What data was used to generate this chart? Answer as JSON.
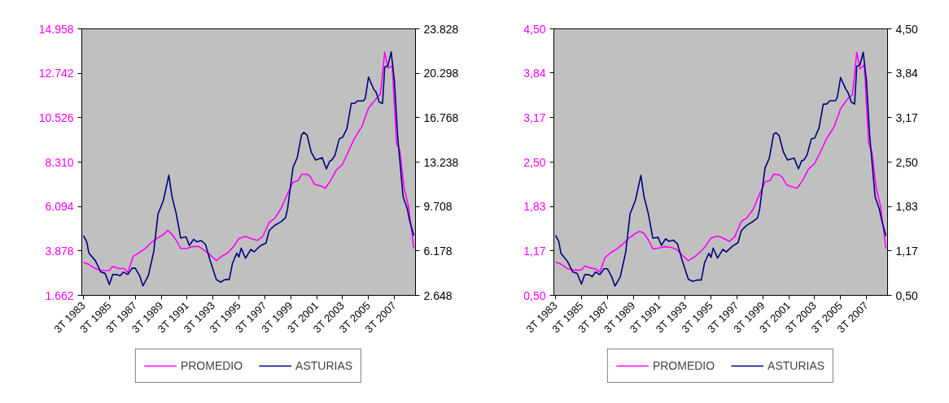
{
  "chart_data": [
    {
      "type": "line",
      "legend": "bottom",
      "grid": false,
      "marker": "none",
      "line_style": "solid",
      "xlim": [
        "1983-05-15",
        "2009-02-15"
      ],
      "xticks": [
        {
          "value": "1983-07",
          "label": "3T 1983"
        },
        {
          "value": "1985-07",
          "label": "3T 1985"
        },
        {
          "value": "1987-07",
          "label": "3T 1987"
        },
        {
          "value": "1989-07",
          "label": "3T 1989"
        },
        {
          "value": "1991-07",
          "label": "3T 1991"
        },
        {
          "value": "1993-07",
          "label": "3T 1993"
        },
        {
          "value": "1995-07",
          "label": "3T 1995"
        },
        {
          "value": "1997-07",
          "label": "3T 1997"
        },
        {
          "value": "1999-07",
          "label": "3T 1999"
        },
        {
          "value": "2001-07",
          "label": "3T 2001"
        },
        {
          "value": "2003-07",
          "label": "3T 2003"
        },
        {
          "value": "2005-07",
          "label": "3T 2005"
        },
        {
          "value": "2007-07",
          "label": "3T 2007"
        }
      ],
      "ylim": [
        1662,
        14958
      ],
      "yticks": [
        {
          "value": 1662,
          "label": "1.662"
        },
        {
          "value": 3878,
          "label": "3.878"
        },
        {
          "value": 6094,
          "label": "6.094"
        },
        {
          "value": 8310,
          "label": "8.310"
        },
        {
          "value": 10526,
          "label": "10.526"
        },
        {
          "value": 12742,
          "label": "12.742"
        },
        {
          "value": 14958,
          "label": "14.958"
        }
      ],
      "y2lim": [
        2648,
        23828
      ],
      "y2ticks": [
        {
          "value": 2648,
          "label": "2.648"
        },
        {
          "value": 6178,
          "label": "6.178"
        },
        {
          "value": 9708,
          "label": "9.708"
        },
        {
          "value": 13238,
          "label": "13.238"
        },
        {
          "value": 16768,
          "label": "16.768"
        },
        {
          "value": 20298,
          "label": "20.298"
        },
        {
          "value": 23828,
          "label": "23.828"
        }
      ],
      "series": [
        {
          "name": "PROMEDIO",
          "color": "#ff00ff",
          "x": [
            "1983-07",
            "1983-12",
            "1984-06",
            "1984-11",
            "1985-07",
            "1985-10",
            "1986-04",
            "1986-09",
            "1986-12",
            "1987-05",
            "1987-11",
            "1988-04",
            "1988-10",
            "1989-03",
            "1989-09",
            "1990-01",
            "1990-05",
            "1990-09",
            "1991-01",
            "1991-07",
            "1991-12",
            "1992-06",
            "1992-11",
            "1993-04",
            "1993-10",
            "1994-03",
            "1994-09",
            "1995-02",
            "1995-07",
            "1996-01",
            "1996-06",
            "1996-12",
            "1997-05",
            "1997-11",
            "1998-04",
            "1998-10",
            "1999-03",
            "1999-09",
            "2000-02",
            "2000-05",
            "2000-10",
            "2001-01",
            "2001-05",
            "2001-12",
            "2002-03",
            "2002-08",
            "2003-01",
            "2003-07",
            "2003-12",
            "2004-06",
            "2005-01",
            "2005-07",
            "2006-01",
            "2006-06",
            "2006-10",
            "2007-01",
            "2007-05",
            "2007-09",
            "2007-12",
            "2008-04",
            "2008-08",
            "2009-01"
          ],
          "values": [
            3300,
            3200,
            3000,
            2900,
            2900,
            3100,
            3000,
            3000,
            2800,
            3600,
            3800,
            4000,
            4300,
            4500,
            4700,
            4900,
            4700,
            4400,
            4000,
            4000,
            4100,
            4100,
            3900,
            3700,
            3400,
            3600,
            3800,
            4100,
            4500,
            4600,
            4500,
            4400,
            4600,
            5300,
            5500,
            6000,
            6600,
            7300,
            7400,
            7700,
            7700,
            7600,
            7200,
            7100,
            7000,
            7400,
            7900,
            8200,
            8800,
            9500,
            10100,
            11000,
            11400,
            11700,
            13800,
            13000,
            13100,
            9200,
            8900,
            7000,
            6100,
            4000
          ]
        },
        {
          "name": "ASTURIAS",
          "color": "#000080",
          "axis": "y2",
          "x": [
            "1983-07",
            "1983-10",
            "1983-12",
            "1984-06",
            "1984-11",
            "1985-03",
            "1985-07",
            "1985-10",
            "1986-02",
            "1986-05",
            "1986-08",
            "1986-12",
            "1987-04",
            "1987-07",
            "1987-11",
            "1988-02",
            "1988-07",
            "1988-12",
            "1989-04",
            "1989-09",
            "1990-02",
            "1990-05",
            "1990-09",
            "1991-01",
            "1991-06",
            "1991-09",
            "1992-01",
            "1992-04",
            "1992-08",
            "1992-12",
            "1993-04",
            "1993-10",
            "1994-02",
            "1994-06",
            "1994-10",
            "1995-01",
            "1995-05",
            "1995-07",
            "1995-09",
            "1996-01",
            "1996-06",
            "1996-09",
            "1997-03",
            "1997-08",
            "1997-11",
            "1998-04",
            "1998-10",
            "1999-02",
            "1999-04",
            "1999-09",
            "2000-01",
            "2000-05",
            "2000-07",
            "2000-10",
            "2001-02",
            "2001-06",
            "2001-12",
            "2002-04",
            "2002-07",
            "2002-09",
            "2002-12",
            "2003-04",
            "2003-07",
            "2003-11",
            "2004-03",
            "2004-06",
            "2004-09",
            "2005-02",
            "2005-04",
            "2005-07",
            "2005-12",
            "2006-02",
            "2006-05",
            "2006-08",
            "2006-10",
            "2007-01",
            "2007-04",
            "2007-07",
            "2007-10",
            "2008-03",
            "2008-07",
            "2008-09",
            "2009-01"
          ],
          "values": [
            7400,
            6900,
            6000,
            5400,
            4500,
            4400,
            3500,
            4300,
            4300,
            4200,
            4500,
            4300,
            4800,
            4800,
            4200,
            3400,
            4200,
            6100,
            9100,
            10200,
            12200,
            10500,
            9100,
            7200,
            7300,
            6600,
            7100,
            6900,
            7000,
            6700,
            5500,
            3900,
            3700,
            3900,
            3900,
            5200,
            6000,
            5700,
            6400,
            5600,
            6300,
            6100,
            6600,
            6800,
            7800,
            8200,
            8500,
            8800,
            9500,
            12800,
            13600,
            15400,
            15600,
            15400,
            14000,
            13400,
            13600,
            12700,
            13300,
            13400,
            13800,
            15100,
            15200,
            15900,
            17900,
            17900,
            18100,
            18100,
            18300,
            20000,
            19000,
            18800,
            18000,
            17900,
            20800,
            20900,
            22000,
            19700,
            15300,
            10500,
            9500,
            8600,
            7400
          ]
        }
      ]
    },
    {
      "type": "line",
      "legend": "bottom",
      "grid": false,
      "marker": "none",
      "line_style": "solid",
      "xlim": [
        "1983-05-15",
        "2009-02-15"
      ],
      "xticks": [
        {
          "value": "1983-07",
          "label": "3T 1983"
        },
        {
          "value": "1985-07",
          "label": "3T 1985"
        },
        {
          "value": "1987-07",
          "label": "3T 1987"
        },
        {
          "value": "1989-07",
          "label": "3T 1989"
        },
        {
          "value": "1991-07",
          "label": "3T 1991"
        },
        {
          "value": "1993-07",
          "label": "3T 1993"
        },
        {
          "value": "1995-07",
          "label": "3T 1995"
        },
        {
          "value": "1997-07",
          "label": "3T 1997"
        },
        {
          "value": "1999-07",
          "label": "3T 1999"
        },
        {
          "value": "2001-07",
          "label": "3T 2001"
        },
        {
          "value": "2003-07",
          "label": "3T 2003"
        },
        {
          "value": "2005-07",
          "label": "3T 2005"
        },
        {
          "value": "2007-07",
          "label": "3T 2007"
        }
      ],
      "ylim": [
        0.5,
        4.5
      ],
      "yticks": [
        {
          "value": 0.5,
          "label": "0,50"
        },
        {
          "value": 1.17,
          "label": "1,17"
        },
        {
          "value": 1.83,
          "label": "1,83"
        },
        {
          "value": 2.5,
          "label": "2,50"
        },
        {
          "value": 3.17,
          "label": "3,17"
        },
        {
          "value": 3.84,
          "label": "3,84"
        },
        {
          "value": 4.5,
          "label": "4,50"
        }
      ],
      "y2lim": [
        0.5,
        4.5
      ],
      "y2ticks": [
        {
          "value": 0.5,
          "label": "0,50"
        },
        {
          "value": 1.17,
          "label": "1,17"
        },
        {
          "value": 1.83,
          "label": "1,83"
        },
        {
          "value": 2.5,
          "label": "2,50"
        },
        {
          "value": 3.17,
          "label": "3,17"
        },
        {
          "value": 3.84,
          "label": "3,84"
        },
        {
          "value": 4.5,
          "label": "4,50"
        }
      ],
      "series": [
        {
          "name": "PROMEDIO",
          "color": "#ff00ff",
          "x": [
            "1983-07",
            "1983-12",
            "1984-06",
            "1984-11",
            "1985-07",
            "1985-10",
            "1986-04",
            "1986-09",
            "1986-12",
            "1987-05",
            "1987-11",
            "1988-04",
            "1988-10",
            "1989-03",
            "1989-09",
            "1990-01",
            "1990-05",
            "1990-09",
            "1991-01",
            "1991-07",
            "1991-12",
            "1992-06",
            "1992-11",
            "1993-04",
            "1993-10",
            "1994-03",
            "1994-09",
            "1995-02",
            "1995-07",
            "1996-01",
            "1996-06",
            "1996-12",
            "1997-05",
            "1997-11",
            "1998-04",
            "1998-10",
            "1999-03",
            "1999-09",
            "2000-02",
            "2000-05",
            "2000-10",
            "2001-01",
            "2001-05",
            "2001-12",
            "2002-03",
            "2002-08",
            "2003-01",
            "2003-07",
            "2003-12",
            "2004-06",
            "2005-01",
            "2005-07",
            "2006-01",
            "2006-06",
            "2006-10",
            "2007-01",
            "2007-05",
            "2007-09",
            "2007-12",
            "2008-04",
            "2008-08",
            "2009-01"
          ],
          "values": [
            1.0,
            0.97,
            0.9,
            0.88,
            0.88,
            0.94,
            0.91,
            0.89,
            0.85,
            1.07,
            1.15,
            1.2,
            1.28,
            1.36,
            1.43,
            1.46,
            1.43,
            1.33,
            1.2,
            1.21,
            1.23,
            1.22,
            1.19,
            1.11,
            1.02,
            1.07,
            1.15,
            1.24,
            1.36,
            1.39,
            1.36,
            1.31,
            1.38,
            1.61,
            1.66,
            1.79,
            1.98,
            2.2,
            2.23,
            2.32,
            2.31,
            2.27,
            2.16,
            2.12,
            2.11,
            2.23,
            2.39,
            2.48,
            2.64,
            2.85,
            3.03,
            3.3,
            3.44,
            3.51,
            4.15,
            3.9,
            3.96,
            2.78,
            2.66,
            2.11,
            1.84,
            1.2
          ]
        },
        {
          "name": "ASTURIAS",
          "color": "#000080",
          "axis": "y2",
          "x": [
            "1983-07",
            "1983-10",
            "1983-12",
            "1984-06",
            "1984-11",
            "1985-03",
            "1985-07",
            "1985-10",
            "1986-02",
            "1986-05",
            "1986-08",
            "1986-12",
            "1987-04",
            "1987-07",
            "1987-11",
            "1988-02",
            "1988-07",
            "1988-12",
            "1989-04",
            "1989-09",
            "1990-02",
            "1990-05",
            "1990-09",
            "1991-01",
            "1991-06",
            "1991-09",
            "1992-01",
            "1992-04",
            "1992-08",
            "1992-12",
            "1993-04",
            "1993-10",
            "1994-02",
            "1994-06",
            "1994-10",
            "1995-01",
            "1995-05",
            "1995-07",
            "1995-09",
            "1996-01",
            "1996-06",
            "1996-09",
            "1997-03",
            "1997-08",
            "1997-11",
            "1998-04",
            "1998-10",
            "1999-02",
            "1999-04",
            "1999-09",
            "2000-01",
            "2000-05",
            "2000-07",
            "2000-10",
            "2001-02",
            "2001-06",
            "2001-12",
            "2002-04",
            "2002-07",
            "2002-09",
            "2002-12",
            "2003-04",
            "2003-07",
            "2003-11",
            "2004-03",
            "2004-06",
            "2004-09",
            "2005-02",
            "2005-04",
            "2005-07",
            "2005-12",
            "2006-02",
            "2006-05",
            "2006-08",
            "2006-10",
            "2007-01",
            "2007-04",
            "2007-07",
            "2007-10",
            "2008-03",
            "2008-07",
            "2008-09",
            "2009-01"
          ],
          "values": [
            1.4,
            1.31,
            1.13,
            1.01,
            0.85,
            0.83,
            0.67,
            0.81,
            0.81,
            0.78,
            0.85,
            0.81,
            0.9,
            0.9,
            0.78,
            0.64,
            0.78,
            1.15,
            1.72,
            1.93,
            2.3,
            1.98,
            1.72,
            1.36,
            1.37,
            1.25,
            1.35,
            1.31,
            1.33,
            1.27,
            1.04,
            0.74,
            0.71,
            0.73,
            0.73,
            0.99,
            1.13,
            1.07,
            1.21,
            1.06,
            1.19,
            1.15,
            1.24,
            1.29,
            1.47,
            1.55,
            1.61,
            1.66,
            1.79,
            2.41,
            2.56,
            2.92,
            2.94,
            2.9,
            2.65,
            2.53,
            2.56,
            2.4,
            2.52,
            2.53,
            2.61,
            2.85,
            2.86,
            3.01,
            3.37,
            3.37,
            3.42,
            3.42,
            3.47,
            3.77,
            3.59,
            3.54,
            3.4,
            3.37,
            3.94,
            3.96,
            4.15,
            3.72,
            2.89,
            1.98,
            1.79,
            1.63,
            1.39
          ]
        }
      ]
    }
  ]
}
